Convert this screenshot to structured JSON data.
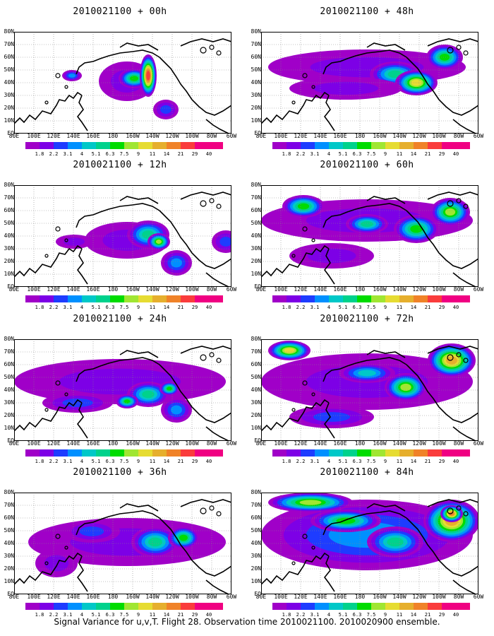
{
  "caption": "Signal Variance for u,v,T. Flight 28. Observation time 2010021100. 2010020900 ensemble.",
  "x_tick_labels": [
    "80E",
    "100E",
    "120E",
    "140E",
    "160E",
    "180",
    "160W",
    "140W",
    "120W",
    "100W",
    "80W",
    "60W"
  ],
  "y_tick_labels": [
    "EQ",
    "10N",
    "20N",
    "30N",
    "40N",
    "50N",
    "60N",
    "70N",
    "80N"
  ],
  "color_scale": {
    "levels": [
      "1.8",
      "2.2",
      "3.1",
      "4",
      "5.1",
      "6.3",
      "7.5",
      "9",
      "11",
      "14",
      "21",
      "29",
      "40"
    ],
    "colors": [
      "#a000c8",
      "#7d00e6",
      "#1e3cff",
      "#0090ff",
      "#00c8c8",
      "#00d28c",
      "#00dc00",
      "#a0e632",
      "#e6dc32",
      "#e6af2d",
      "#f08228",
      "#fa3c3c",
      "#f00082"
    ]
  },
  "panels": [
    {
      "title": "2010021100 + 00h"
    },
    {
      "title": "2010021100 + 48h"
    },
    {
      "title": "2010021100 + 12h"
    },
    {
      "title": "2010021100 + 60h"
    },
    {
      "title": "2010021100 + 24h"
    },
    {
      "title": "2010021100 + 72h"
    },
    {
      "title": "2010021100 + 36h"
    },
    {
      "title": "2010021100 + 84h"
    }
  ]
}
